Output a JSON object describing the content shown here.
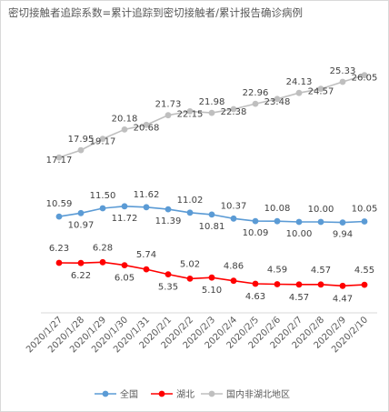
{
  "chart_data": {
    "type": "line",
    "title": "密切接触者追踪系数=累计追踪到密切接触者/累计报告确诊病例",
    "categories": [
      "2020/1/27",
      "2020/1/28",
      "2020/1/29",
      "2020/1/30",
      "2020/1/31",
      "2020/2/1",
      "2020/2/2",
      "2020/2/3",
      "2020/2/4",
      "2020/2/5",
      "2020/2/6",
      "2020/2/7",
      "2020/2/8",
      "2020/2/9",
      "2020/2/10"
    ],
    "series": [
      {
        "name": "全国",
        "color": "#5b9bd5",
        "values": [
          10.59,
          10.97,
          11.5,
          11.72,
          11.62,
          11.39,
          11.02,
          10.81,
          10.37,
          10.09,
          10.08,
          10.0,
          10.0,
          9.94,
          10.05
        ],
        "labels": [
          "10.59",
          "10.97",
          "11.50",
          "11.72",
          "11.62",
          "11.39",
          "11.02",
          "10.81",
          "10.37",
          "10.09",
          "10.08",
          "10.00",
          "10.00",
          "9.94",
          "10.05"
        ]
      },
      {
        "name": "湖北",
        "color": "#ff0000",
        "values": [
          6.23,
          6.22,
          6.28,
          6.05,
          5.74,
          5.35,
          5.02,
          5.1,
          4.86,
          4.63,
          4.59,
          4.57,
          4.57,
          4.47,
          4.55
        ],
        "labels": [
          "6.23",
          "6.22",
          "6.28",
          "6.05",
          "5.74",
          "5.35",
          "5.02",
          "5.10",
          "4.86",
          "4.63",
          "4.59",
          "4.57",
          "4.57",
          "4.47",
          "4.55"
        ]
      },
      {
        "name": "国内非湖北地区",
        "color": "#bfbfbf",
        "values": [
          17.17,
          17.95,
          19.17,
          20.18,
          20.68,
          21.73,
          22.15,
          21.98,
          22.38,
          22.96,
          23.48,
          24.13,
          24.57,
          25.33,
          26.05
        ],
        "labels": [
          "17.17",
          "17.95",
          "19.17",
          "20.18",
          "20.68",
          "21.73",
          "22.15",
          "21.98",
          "22.38",
          "22.96",
          "23.48",
          "24.13",
          "24.57",
          "25.33",
          "26.05"
        ]
      }
    ],
    "legend_position": "bottom",
    "grid": false
  }
}
